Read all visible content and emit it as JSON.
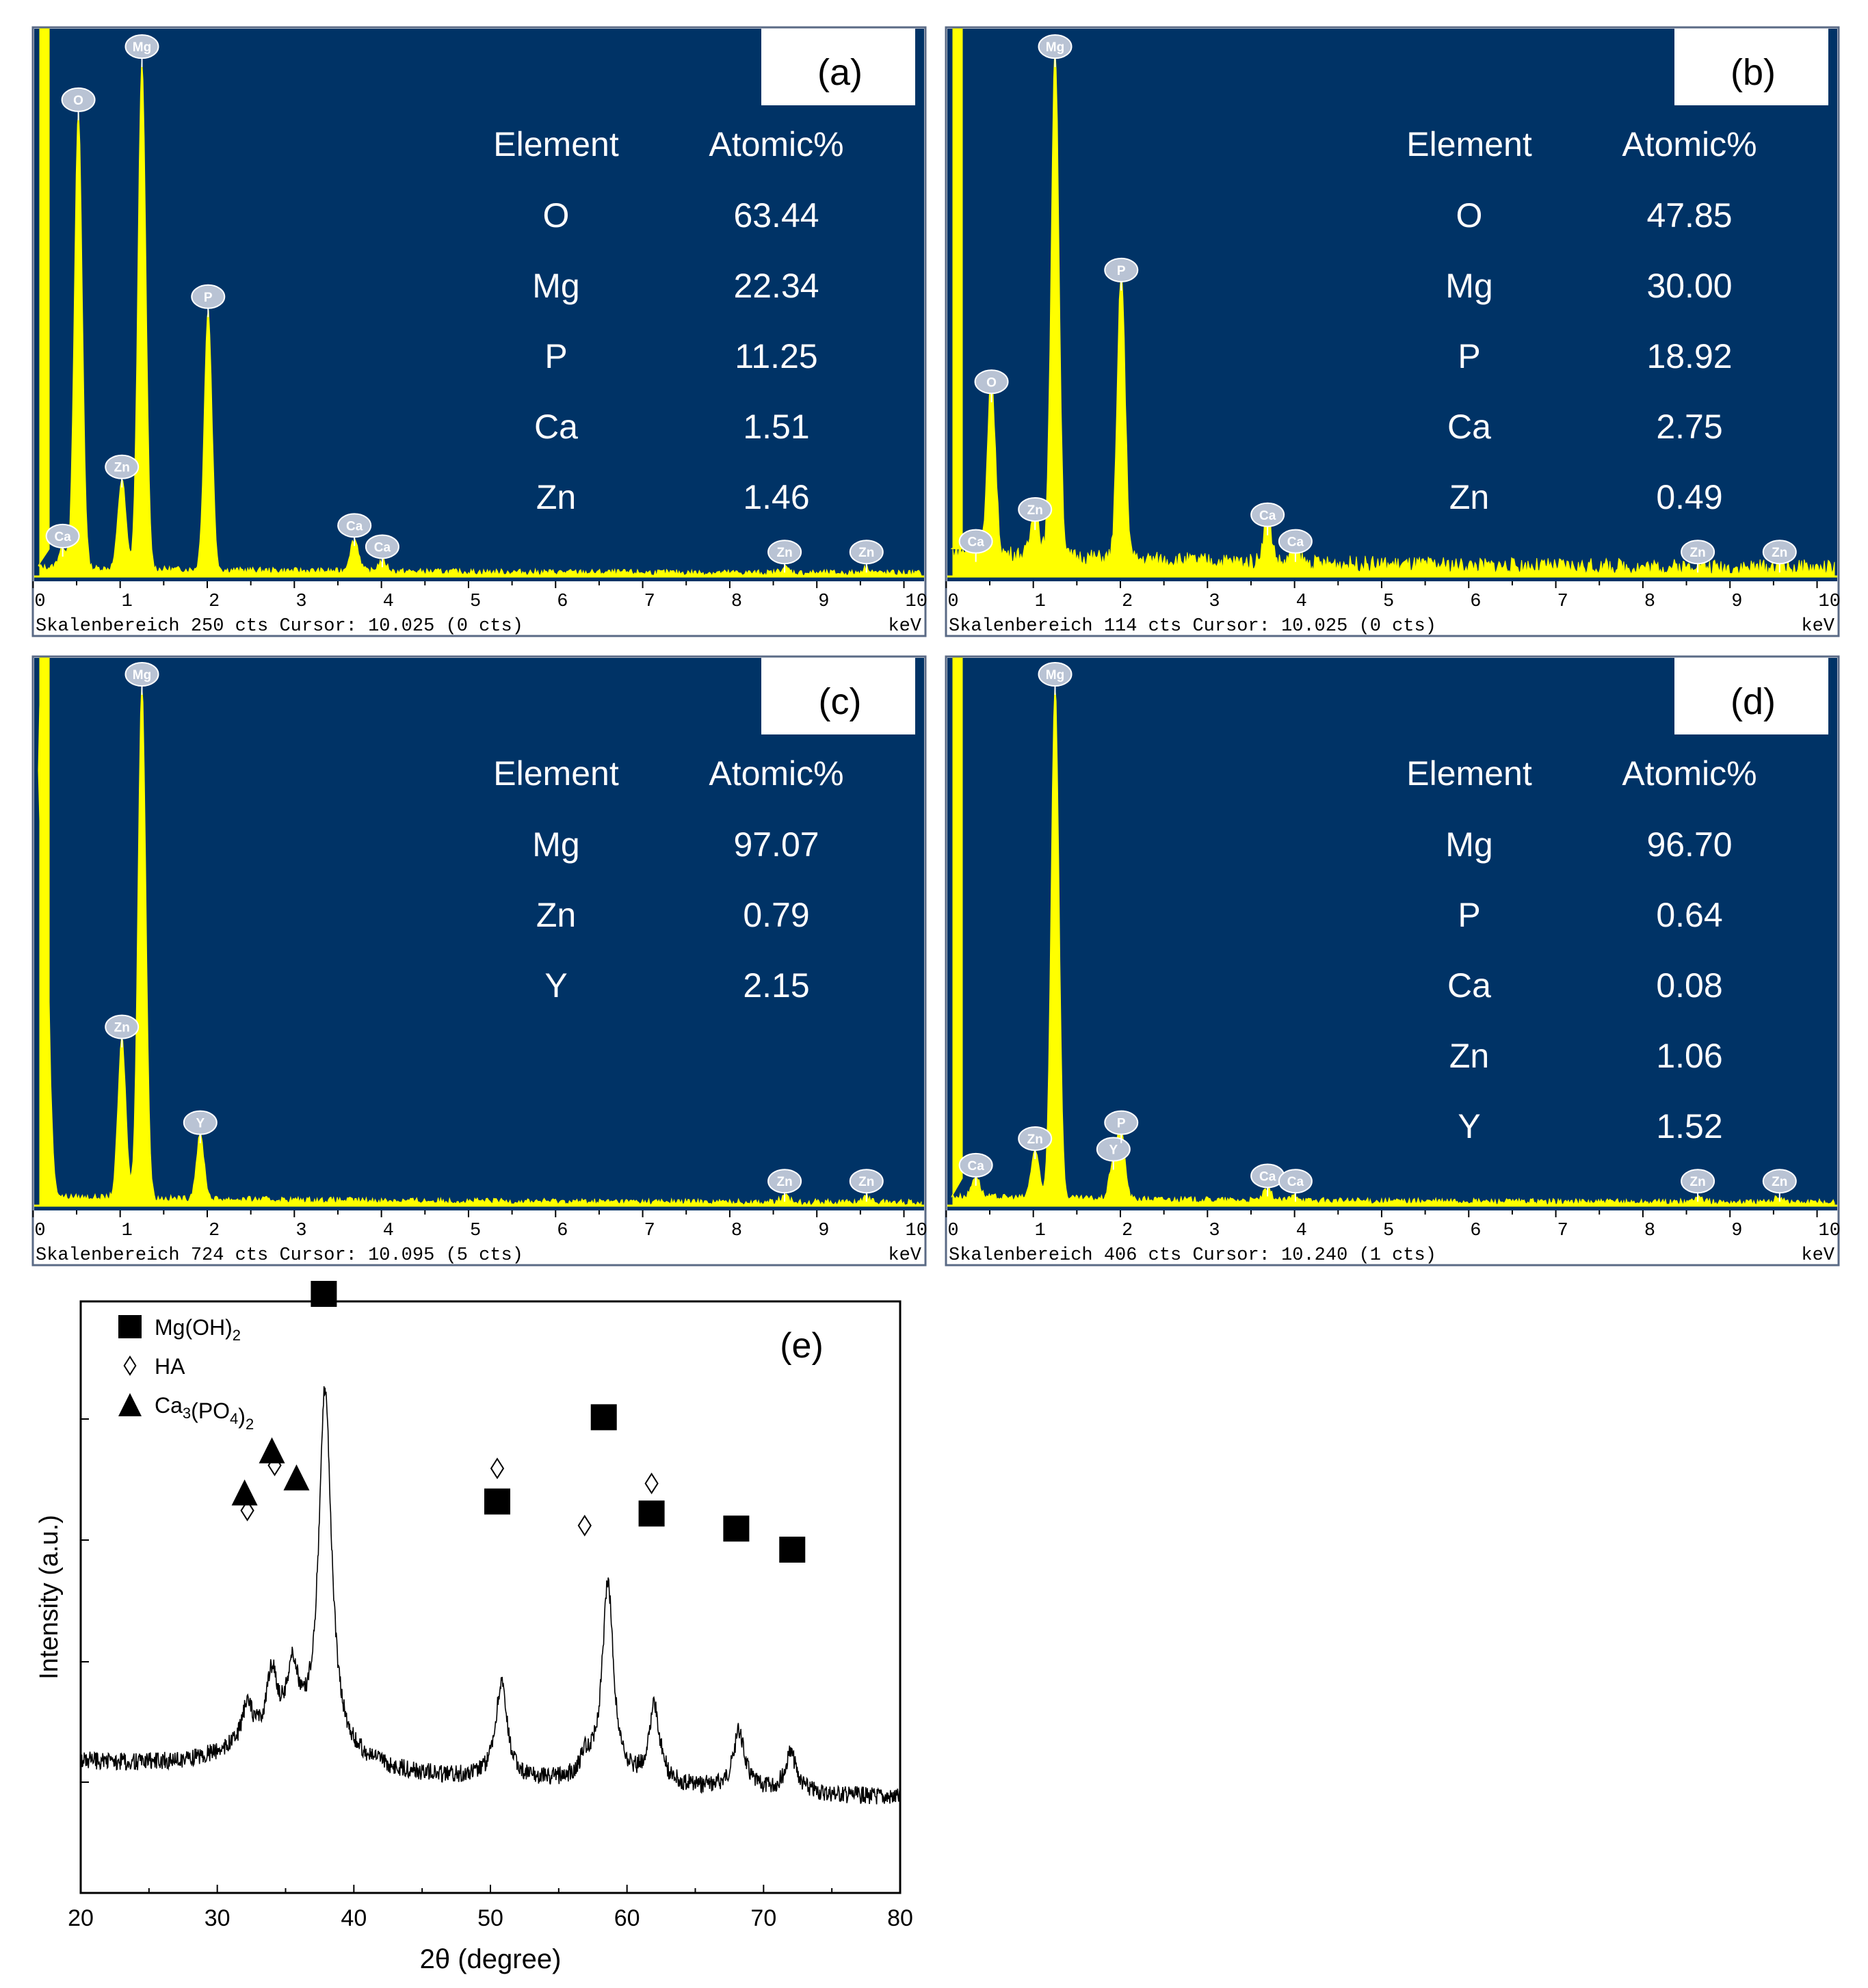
{
  "chart_data": [
    {
      "type": "line",
      "panel": "(a)",
      "xlabel": "keV",
      "x_ticks": [
        "0",
        "1",
        "2",
        "3",
        "4",
        "5",
        "6",
        "7",
        "8",
        "9",
        "10"
      ],
      "status": "Skalenbereich 250 cts Cursor: 10.025  (0 cts)",
      "table_header": [
        "Element",
        "Atomic%"
      ],
      "table": [
        {
          "element": "O",
          "atomic": "63.44"
        },
        {
          "element": "Mg",
          "atomic": "22.34"
        },
        {
          "element": "P",
          "atomic": "11.25"
        },
        {
          "element": "Ca",
          "atomic": "1.51"
        },
        {
          "element": "Zn",
          "atomic": "1.46"
        }
      ],
      "peaks": [
        {
          "label": "Ca",
          "kev": 0.34,
          "height": 0.04
        },
        {
          "label": "O",
          "kev": 0.52,
          "height": 0.86
        },
        {
          "label": "Zn",
          "kev": 1.02,
          "height": 0.17
        },
        {
          "label": "Mg",
          "kev": 1.25,
          "height": 0.96
        },
        {
          "label": "P",
          "kev": 2.01,
          "height": 0.49
        },
        {
          "label": "Ca",
          "kev": 3.69,
          "height": 0.06
        },
        {
          "label": "Ca",
          "kev": 4.01,
          "height": 0.02
        },
        {
          "label": "Zn",
          "kev": 8.63,
          "height": 0.01
        },
        {
          "label": "Zn",
          "kev": 9.57,
          "height": 0.01
        }
      ]
    },
    {
      "type": "line",
      "panel": "(b)",
      "xlabel": "keV",
      "x_ticks": [
        "0",
        "1",
        "2",
        "3",
        "4",
        "5",
        "6",
        "7",
        "8",
        "9",
        "10"
      ],
      "status": "Skalenbereich 114 cts Cursor: 10.025  (0 cts)",
      "table_header": [
        "Element",
        "Atomic%"
      ],
      "table": [
        {
          "element": "O",
          "atomic": "47.85"
        },
        {
          "element": "Mg",
          "atomic": "30.00"
        },
        {
          "element": "P",
          "atomic": "18.92"
        },
        {
          "element": "Ca",
          "atomic": "2.75"
        },
        {
          "element": "Zn",
          "atomic": "0.49"
        }
      ],
      "peaks": [
        {
          "label": "Ca",
          "kev": 0.34,
          "height": 0.03
        },
        {
          "label": "O",
          "kev": 0.52,
          "height": 0.33
        },
        {
          "label": "Zn",
          "kev": 1.02,
          "height": 0.09
        },
        {
          "label": "Mg",
          "kev": 1.25,
          "height": 0.96
        },
        {
          "label": "P",
          "kev": 2.01,
          "height": 0.54
        },
        {
          "label": "Ca",
          "kev": 3.69,
          "height": 0.08
        },
        {
          "label": "Ca",
          "kev": 4.01,
          "height": 0.03
        },
        {
          "label": "Zn",
          "kev": 8.63,
          "height": 0.01
        },
        {
          "label": "Zn",
          "kev": 9.57,
          "height": 0.01
        }
      ]
    },
    {
      "type": "line",
      "panel": "(c)",
      "xlabel": "keV",
      "x_ticks": [
        "0",
        "1",
        "2",
        "3",
        "4",
        "5",
        "6",
        "7",
        "8",
        "9",
        "10"
      ],
      "status": "Skalenbereich 724 cts Cursor: 10.095  (5 cts)",
      "table_header": [
        "Element",
        "Atomic%"
      ],
      "table": [
        {
          "element": "Mg",
          "atomic": "97.07"
        },
        {
          "element": "Zn",
          "atomic": "0.79"
        },
        {
          "element": "Y",
          "atomic": "2.15"
        }
      ],
      "peaks": [
        {
          "label": "",
          "kev": 0.1,
          "height": 1.0
        },
        {
          "label": "Zn",
          "kev": 1.02,
          "height": 0.3
        },
        {
          "label": "Mg",
          "kev": 1.25,
          "height": 0.97
        },
        {
          "label": "Y",
          "kev": 1.92,
          "height": 0.12
        },
        {
          "label": "Zn",
          "kev": 8.63,
          "height": 0.01
        },
        {
          "label": "Zn",
          "kev": 9.57,
          "height": 0.01
        }
      ]
    },
    {
      "type": "line",
      "panel": "(d)",
      "xlabel": "keV",
      "x_ticks": [
        "0",
        "1",
        "2",
        "3",
        "4",
        "5",
        "6",
        "7",
        "8",
        "9",
        "10"
      ],
      "status": "Skalenbereich 406 cts Cursor: 10.240  (1 cts)",
      "table_header": [
        "Element",
        "Atomic%"
      ],
      "table": [
        {
          "element": "Mg",
          "atomic": "96.70"
        },
        {
          "element": "P",
          "atomic": "0.64"
        },
        {
          "element": "Ca",
          "atomic": "0.08"
        },
        {
          "element": "Zn",
          "atomic": "1.06"
        },
        {
          "element": "Y",
          "atomic": "1.52"
        }
      ],
      "peaks": [
        {
          "label": "Ca",
          "kev": 0.34,
          "height": 0.04
        },
        {
          "label": "Zn",
          "kev": 1.02,
          "height": 0.09
        },
        {
          "label": "Mg",
          "kev": 1.25,
          "height": 0.97
        },
        {
          "label": "Y",
          "kev": 1.92,
          "height": 0.07
        },
        {
          "label": "P",
          "kev": 2.01,
          "height": 0.12
        },
        {
          "label": "Ca",
          "kev": 3.69,
          "height": 0.02
        },
        {
          "label": "Ca",
          "kev": 4.01,
          "height": 0.01
        },
        {
          "label": "Zn",
          "kev": 8.63,
          "height": 0.01
        },
        {
          "label": "Zn",
          "kev": 9.57,
          "height": 0.01
        }
      ]
    },
    {
      "type": "line",
      "panel": "(e)",
      "xlabel": "2θ (degree)",
      "ylabel": "Intensity (a.u.)",
      "xlim": [
        20,
        80
      ],
      "x_ticks": [
        20,
        30,
        40,
        50,
        60,
        70,
        80
      ],
      "legend": [
        {
          "symbol": "square",
          "label": "Mg(OH)",
          "sub": "2"
        },
        {
          "symbol": "diamond",
          "label": "HA"
        },
        {
          "symbol": "triangle",
          "label": "Ca",
          "sub": "3",
          "label2": "(PO",
          "sub2": "4",
          "label3": ")",
          "sub3": "2"
        }
      ],
      "series_peaks": [
        {
          "two_theta": 32.2,
          "rel": 0.1
        },
        {
          "two_theta": 34.0,
          "rel": 0.17
        },
        {
          "two_theta": 35.5,
          "rel": 0.18
        },
        {
          "two_theta": 37.9,
          "rel": 0.95
        },
        {
          "two_theta": 50.8,
          "rel": 0.25
        },
        {
          "two_theta": 57.0,
          "rel": 0.05
        },
        {
          "two_theta": 58.6,
          "rel": 0.52
        },
        {
          "two_theta": 62.0,
          "rel": 0.2
        },
        {
          "two_theta": 68.2,
          "rel": 0.15
        },
        {
          "two_theta": 72.0,
          "rel": 0.1
        }
      ],
      "markers": [
        {
          "symbol": "square",
          "two_theta": 37.8,
          "level": 1.0
        },
        {
          "symbol": "square",
          "two_theta": 50.5,
          "level": 0.31
        },
        {
          "symbol": "square",
          "two_theta": 58.3,
          "level": 0.59
        },
        {
          "symbol": "square",
          "two_theta": 61.8,
          "level": 0.27
        },
        {
          "symbol": "square",
          "two_theta": 68.0,
          "level": 0.22
        },
        {
          "symbol": "square",
          "two_theta": 72.1,
          "level": 0.15
        },
        {
          "symbol": "diamond",
          "two_theta": 32.2,
          "level": 0.28
        },
        {
          "symbol": "diamond",
          "two_theta": 34.2,
          "level": 0.43
        },
        {
          "symbol": "diamond",
          "two_theta": 50.5,
          "level": 0.42
        },
        {
          "symbol": "diamond",
          "two_theta": 56.9,
          "level": 0.23
        },
        {
          "symbol": "diamond",
          "two_theta": 61.8,
          "level": 0.37
        },
        {
          "symbol": "triangle",
          "two_theta": 32.0,
          "level": 0.34
        },
        {
          "symbol": "triangle",
          "two_theta": 34.0,
          "level": 0.48
        },
        {
          "symbol": "triangle",
          "two_theta": 35.8,
          "level": 0.39
        }
      ]
    }
  ],
  "colors": {
    "eds_bg": "#003366",
    "eds_fill": "#ffff00",
    "eds_text": "#ffffff",
    "xrd_line": "#000000"
  }
}
